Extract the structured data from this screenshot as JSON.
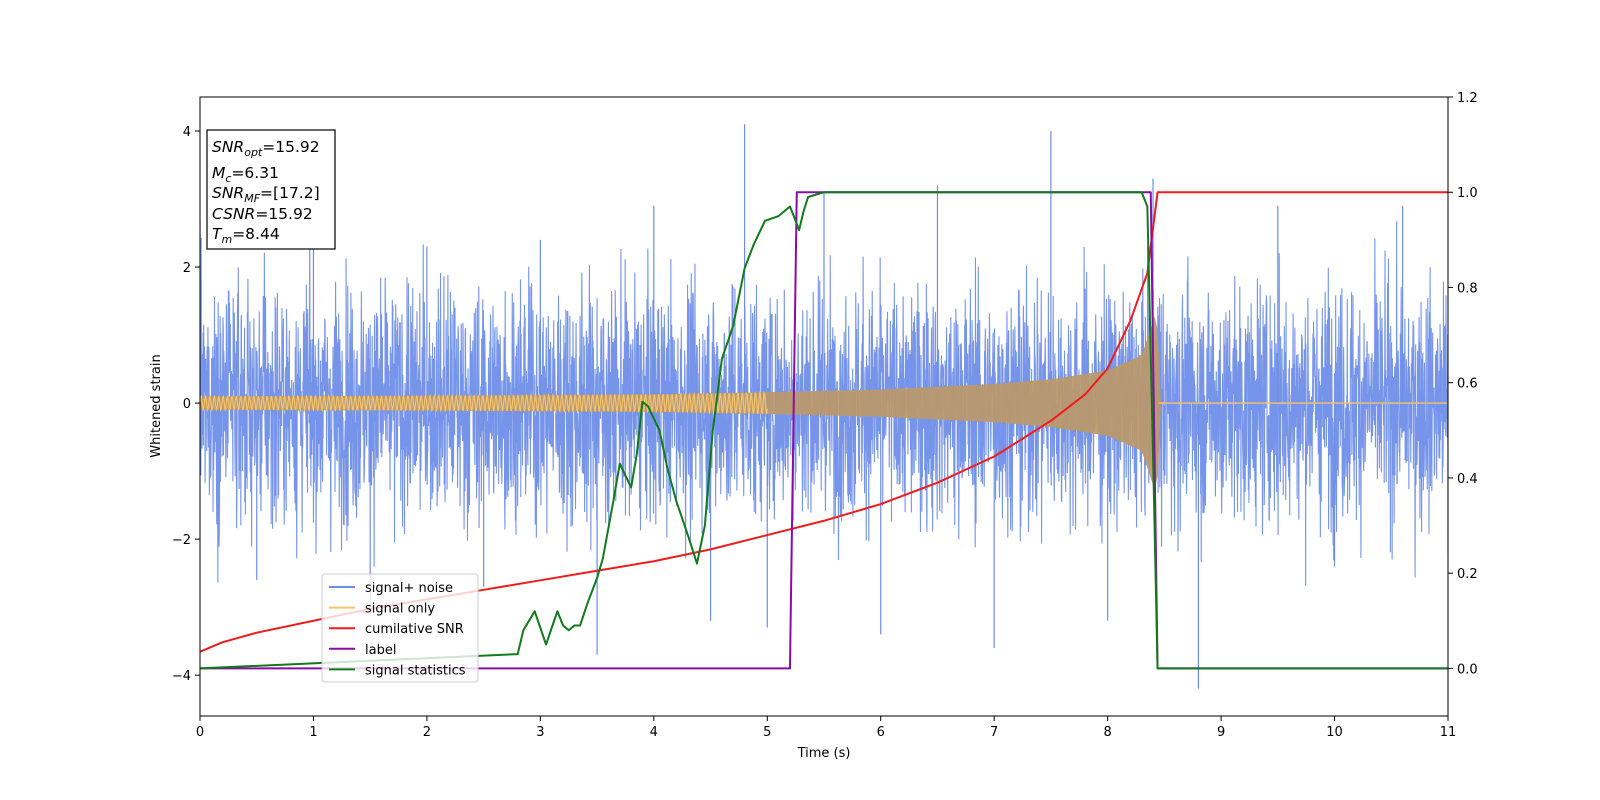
{
  "chart_data": {
    "type": "line",
    "xlabel": "Time (s)",
    "ylabel": "Whitened strain",
    "xlim": [
      0,
      11
    ],
    "ylim": [
      -4.6,
      4.5
    ],
    "y2lim": [
      -0.1,
      1.2
    ],
    "x_ticks": [
      "0",
      "1",
      "2",
      "3",
      "4",
      "5",
      "6",
      "7",
      "8",
      "9",
      "10",
      "11"
    ],
    "y_ticks": [
      "−4",
      "−2",
      "0",
      "2",
      "4"
    ],
    "y2_ticks": [
      "0.0",
      "0.2",
      "0.4",
      "0.6",
      "0.8",
      "1.0",
      "1.2"
    ],
    "grid": false,
    "legend_position": "lower-left",
    "series": [
      {
        "name": "signal+ noise",
        "axis": "left",
        "color": "#6f8ee8",
        "description_points": [
          [
            0,
            2.7
          ],
          [
            0.5,
            -2.6
          ],
          [
            1.0,
            2.5
          ],
          [
            1.5,
            -3.0
          ],
          [
            2.0,
            2.3
          ],
          [
            2.5,
            -2.7
          ],
          [
            3.0,
            2.4
          ],
          [
            3.5,
            -3.7
          ],
          [
            4.0,
            2.9
          ],
          [
            4.5,
            -3.2
          ],
          [
            4.8,
            4.1
          ],
          [
            5.0,
            -3.3
          ],
          [
            5.5,
            3.1
          ],
          [
            6.0,
            -3.4
          ],
          [
            6.5,
            3.2
          ],
          [
            7.0,
            -3.6
          ],
          [
            7.5,
            4.0
          ],
          [
            8.0,
            -3.2
          ],
          [
            8.4,
            3.3
          ],
          [
            8.8,
            -4.2
          ],
          [
            9.5,
            2.9
          ],
          [
            10.0,
            -2.4
          ],
          [
            10.6,
            2.9
          ],
          [
            11.0,
            -2.2
          ]
        ]
      },
      {
        "name": "signal only",
        "axis": "left",
        "color": "#f4c46c",
        "envelope": [
          [
            0,
            0.1
          ],
          [
            2,
            0.11
          ],
          [
            4,
            0.13
          ],
          [
            5,
            0.16
          ],
          [
            6,
            0.2
          ],
          [
            7,
            0.28
          ],
          [
            7.5,
            0.35
          ],
          [
            8,
            0.48
          ],
          [
            8.3,
            0.7
          ],
          [
            8.44,
            1.4
          ],
          [
            8.45,
            0.0
          ],
          [
            11,
            0.0
          ]
        ]
      },
      {
        "name": "cumilative SNR",
        "axis": "right",
        "color": "#ee1c1c",
        "x": [
          0,
          0.2,
          0.5,
          1,
          1.5,
          2,
          2.5,
          3,
          3.5,
          4,
          4.5,
          5,
          5.5,
          6,
          6.5,
          7,
          7.5,
          7.8,
          8.0,
          8.2,
          8.35,
          8.44,
          11
        ],
        "y": [
          0.035,
          0.055,
          0.075,
          0.1,
          0.125,
          0.145,
          0.165,
          0.185,
          0.205,
          0.225,
          0.25,
          0.28,
          0.31,
          0.345,
          0.39,
          0.445,
          0.52,
          0.575,
          0.63,
          0.73,
          0.83,
          1.0,
          1.0
        ]
      },
      {
        "name": "label",
        "axis": "right",
        "color": "#8a0ca6",
        "x": [
          0,
          5.2,
          5.26,
          8.38,
          8.44,
          11
        ],
        "y": [
          0.0,
          0.0,
          1.0,
          1.0,
          0.0,
          0.0
        ]
      },
      {
        "name": "signal statistics",
        "axis": "right",
        "color": "#127a1c",
        "x": [
          0,
          2.8,
          2.85,
          2.95,
          3.05,
          3.15,
          3.2,
          3.25,
          3.3,
          3.35,
          3.42,
          3.5,
          3.55,
          3.65,
          3.7,
          3.8,
          3.85,
          3.9,
          3.95,
          4.05,
          4.12,
          4.2,
          4.3,
          4.38,
          4.45,
          4.52,
          4.6,
          4.7,
          4.8,
          4.88,
          4.98,
          5.1,
          5.15,
          5.2,
          5.25,
          5.28,
          5.32,
          5.36,
          5.5,
          6.0,
          6.5,
          7.0,
          7.5,
          8.0,
          8.3,
          8.35,
          8.4,
          8.44,
          8.5,
          11
        ],
        "y": [
          0.0,
          0.03,
          0.08,
          0.12,
          0.05,
          0.12,
          0.09,
          0.08,
          0.09,
          0.09,
          0.14,
          0.19,
          0.23,
          0.36,
          0.43,
          0.38,
          0.45,
          0.56,
          0.55,
          0.5,
          0.42,
          0.35,
          0.28,
          0.22,
          0.3,
          0.5,
          0.65,
          0.72,
          0.84,
          0.89,
          0.94,
          0.95,
          0.96,
          0.97,
          0.94,
          0.92,
          0.96,
          0.99,
          1.0,
          1.0,
          1.0,
          1.0,
          1.0,
          1.0,
          1.0,
          0.97,
          0.45,
          0.0,
          0.0,
          0.0
        ]
      }
    ],
    "legend": [
      "signal+ noise",
      "signal only",
      "cumilative SNR",
      "label",
      "signal statistics"
    ]
  },
  "info_box": {
    "snr_opt_sub": "opt",
    "snr_opt_value": "=15.92",
    "mc_sub": "c",
    "mc_value": "=6.31",
    "snr_mf_sub": "MF",
    "snr_mf_value": "=[17.2]",
    "csnr_value": "=15.92",
    "tm_sub": "m",
    "tm_value": "=8.44"
  }
}
